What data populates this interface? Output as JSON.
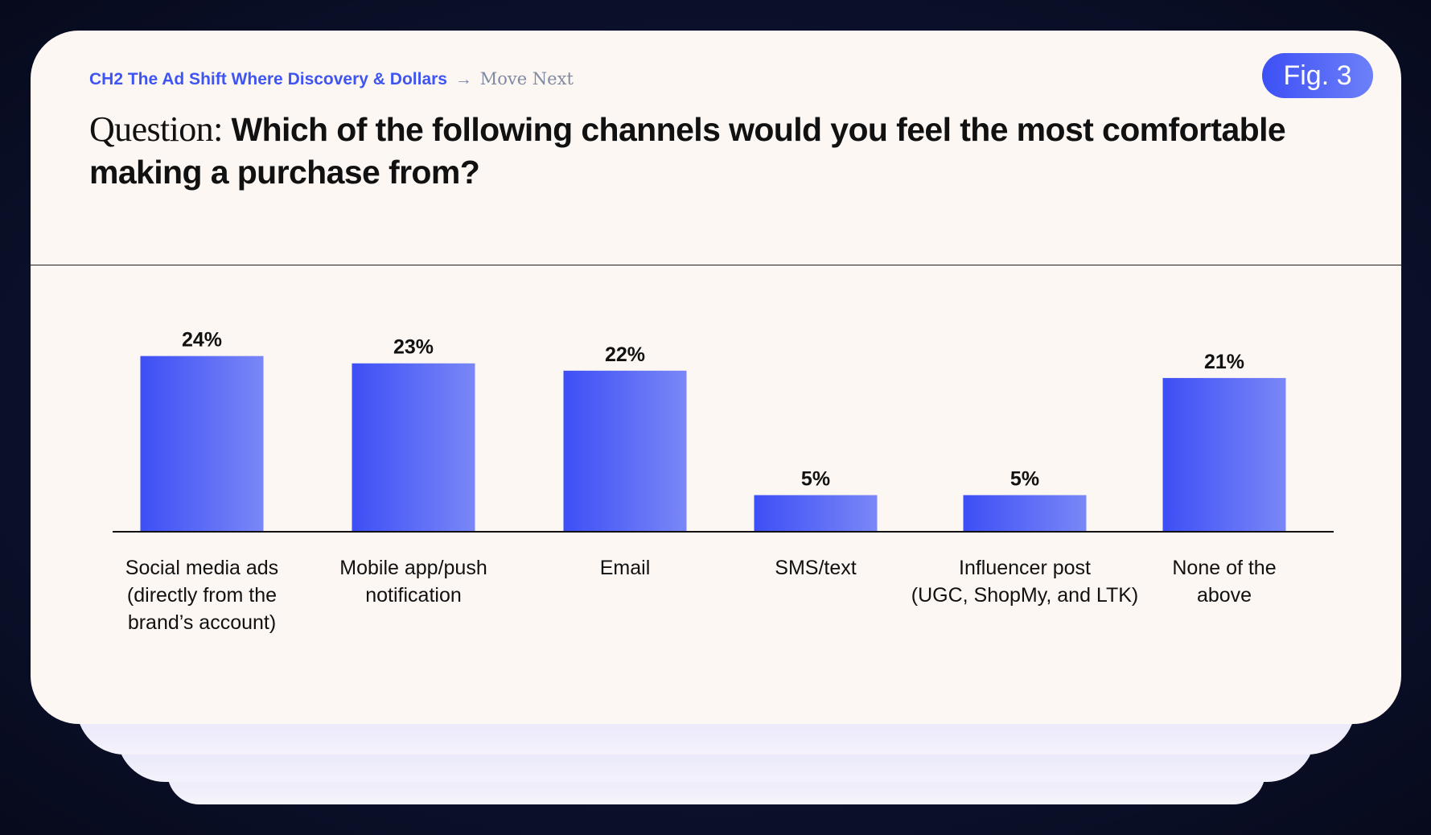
{
  "breadcrumb": {
    "chapter": "CH2 The Ad Shift Where Discovery & Dollars",
    "arrow": "→",
    "next": "Move Next"
  },
  "figure_label": "Fig. 3",
  "question": {
    "prefix": "Question:",
    "text": "Which of the following channels would you feel the most comfortable making a purchase from?"
  },
  "colors": {
    "bar_start": "#3d4ff5",
    "bar_end": "#7a87f7",
    "accent": "#3f55f2",
    "card": "#fcf7f3"
  },
  "chart_data": {
    "type": "bar",
    "title": "Which of the following channels would you feel the most comfortable making a purchase from?",
    "categories": [
      [
        "Social media ads",
        "(directly from the",
        "brand’s account)"
      ],
      [
        "Mobile app/push",
        "notification"
      ],
      [
        "Email"
      ],
      [
        "SMS/text"
      ],
      [
        "Influencer post",
        "(UGC, ShopMy, and LTK)"
      ],
      [
        "None of the",
        "above"
      ]
    ],
    "values": [
      24,
      23,
      22,
      5,
      5,
      21
    ],
    "value_labels": [
      "24%",
      "23%",
      "22%",
      "5%",
      "5%",
      "21%"
    ],
    "ylim": [
      0,
      30
    ],
    "xlabel": "",
    "ylabel": "",
    "grid": false
  }
}
